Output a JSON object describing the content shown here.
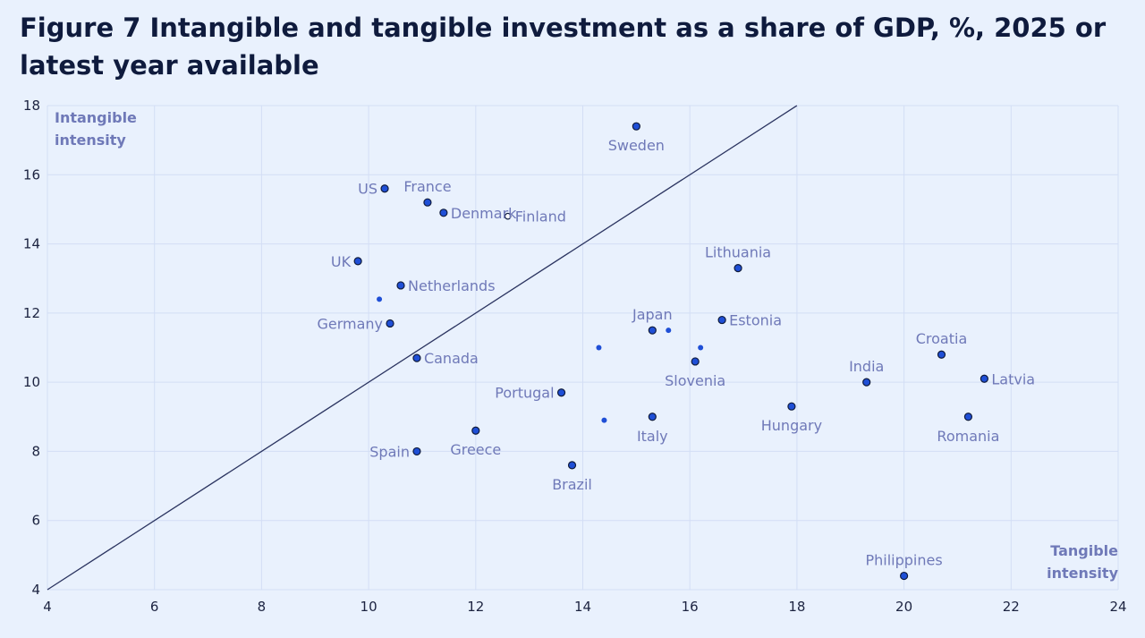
{
  "title": "Figure 7 Intangible and tangible investment as a share of GDP, %, 2025 or latest year available",
  "chart_data": {
    "type": "scatter",
    "ylabel": [
      "Intangible",
      "intensity"
    ],
    "xlabel": [
      "Tangible",
      "intensity"
    ],
    "xlim": [
      4,
      24
    ],
    "ylim": [
      4,
      18
    ],
    "xticks": [
      4,
      6,
      8,
      10,
      12,
      14,
      16,
      18,
      20,
      22,
      24
    ],
    "yticks": [
      4,
      6,
      8,
      10,
      12,
      14,
      16,
      18
    ],
    "grid": true,
    "reference_line": {
      "from": [
        4,
        4
      ],
      "to": [
        18,
        18
      ]
    },
    "points": [
      {
        "label": "Sweden",
        "x": 15.0,
        "y": 17.4,
        "pos": "below"
      },
      {
        "label": "US",
        "x": 10.3,
        "y": 15.6,
        "pos": "left"
      },
      {
        "label": "France",
        "x": 11.1,
        "y": 15.2,
        "pos": "above"
      },
      {
        "label": "Denmark",
        "x": 11.4,
        "y": 14.9,
        "pos": "right"
      },
      {
        "label": "Finland",
        "x": 12.6,
        "y": 14.8,
        "pos": "right",
        "hollow": true
      },
      {
        "label": "UK",
        "x": 9.8,
        "y": 13.5,
        "pos": "left"
      },
      {
        "label": "Netherlands",
        "x": 10.6,
        "y": 12.8,
        "pos": "right"
      },
      {
        "label": "",
        "x": 10.2,
        "y": 12.4,
        "small": true
      },
      {
        "label": "Germany",
        "x": 10.4,
        "y": 11.7,
        "pos": "left"
      },
      {
        "label": "Canada",
        "x": 10.9,
        "y": 10.7,
        "pos": "right"
      },
      {
        "label": "Lithuania",
        "x": 16.9,
        "y": 13.3,
        "pos": "above"
      },
      {
        "label": "Estonia",
        "x": 16.6,
        "y": 11.8,
        "pos": "right"
      },
      {
        "label": "Japan",
        "x": 15.3,
        "y": 11.5,
        "pos": "above"
      },
      {
        "label": "",
        "x": 15.6,
        "y": 11.5,
        "small": true
      },
      {
        "label": "",
        "x": 16.2,
        "y": 11.0,
        "small": true
      },
      {
        "label": "",
        "x": 14.3,
        "y": 11.0,
        "small": true
      },
      {
        "label": "Slovenia",
        "x": 16.1,
        "y": 10.6,
        "pos": "below"
      },
      {
        "label": "Portugal",
        "x": 13.6,
        "y": 9.7,
        "pos": "left"
      },
      {
        "label": "",
        "x": 14.4,
        "y": 8.9,
        "small": true
      },
      {
        "label": "Italy",
        "x": 15.3,
        "y": 9.0,
        "pos": "below"
      },
      {
        "label": "Greece",
        "x": 12.0,
        "y": 8.6,
        "pos": "below"
      },
      {
        "label": "Spain",
        "x": 10.9,
        "y": 8.0,
        "pos": "left"
      },
      {
        "label": "Brazil",
        "x": 13.8,
        "y": 7.6,
        "pos": "below"
      },
      {
        "label": "Hungary",
        "x": 17.9,
        "y": 9.3,
        "pos": "below"
      },
      {
        "label": "India",
        "x": 19.3,
        "y": 10.0,
        "pos": "above"
      },
      {
        "label": "Croatia",
        "x": 20.7,
        "y": 10.8,
        "pos": "above"
      },
      {
        "label": "Latvia",
        "x": 21.5,
        "y": 10.1,
        "pos": "right"
      },
      {
        "label": "Romania",
        "x": 21.2,
        "y": 9.0,
        "pos": "below"
      },
      {
        "label": "Philippines",
        "x": 20.0,
        "y": 4.4,
        "pos": "above"
      }
    ]
  },
  "colors": {
    "background": "#e9f1fd",
    "grid": "#d3def5",
    "point_fill": "#1f4fd6",
    "point_stroke": "#0f1b3d",
    "label": "#6f79b8",
    "line": "#2b3460"
  }
}
